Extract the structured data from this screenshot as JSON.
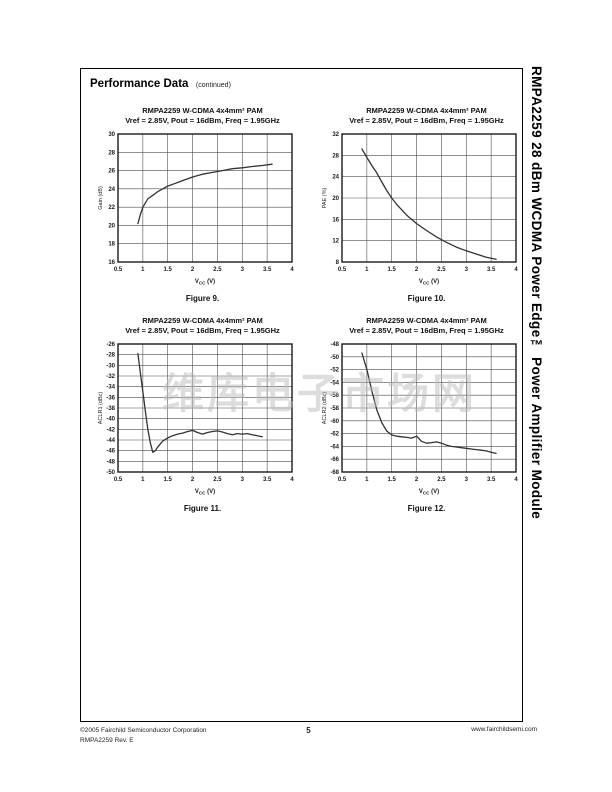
{
  "header": {
    "title": "Performance Data",
    "continued": "(continued)"
  },
  "sidebar": {
    "title": "RMPA2259 28 dBm WCDMA Power Edge™ Power Amplifier Module"
  },
  "watermark": {
    "text": "维库电子市场网"
  },
  "footer": {
    "copyright": "©2005 Fairchild Semiconductor Corporation",
    "revision": "RMPA2259 Rev. E",
    "page_number": "5",
    "website": "www.fairchildsemi.com"
  },
  "style": {
    "curve_color": "#333333",
    "grid_color": "#4d4d4d",
    "frame_color": "#1a1a1a",
    "text_color": "#1a1a1a",
    "watermark_color": "#bdbdbd"
  },
  "chart_data": [
    {
      "id": "figure-9",
      "type": "line",
      "title": "RMPA2259 W-CDMA 4x4mm² PAM",
      "subtitle": "Vref = 2.85V, Pout = 16dBm, Freq = 1.95GHz",
      "caption": "Figure 9.",
      "xlabel": {
        "pre": "V",
        "sub": "CC",
        "post": " (V)"
      },
      "ylabel": "Gain (dB)",
      "xlim": [
        0.5,
        4
      ],
      "ylim": [
        16,
        30
      ],
      "xticks": [
        0.5,
        1,
        1.5,
        2,
        2.5,
        3,
        3.5,
        4
      ],
      "xtick_labels": [
        "0.5",
        "1",
        "1.5",
        "2",
        "2.5",
        "3",
        "3.5",
        "4"
      ],
      "yticks": [
        16,
        18,
        20,
        22,
        24,
        26,
        28,
        30
      ],
      "grid": true,
      "legend": "none",
      "series": [
        {
          "name": "Gain vs Vcc",
          "x": [
            0.9,
            0.95,
            1.0,
            1.1,
            1.2,
            1.3,
            1.4,
            1.5,
            1.6,
            1.8,
            2.0,
            2.2,
            2.4,
            2.6,
            2.8,
            3.0,
            3.2,
            3.4,
            3.6
          ],
          "y": [
            20.2,
            21.2,
            22.0,
            22.9,
            23.3,
            23.7,
            24.0,
            24.3,
            24.5,
            24.9,
            25.3,
            25.6,
            25.8,
            26.0,
            26.2,
            26.3,
            26.45,
            26.55,
            26.7
          ]
        }
      ]
    },
    {
      "id": "figure-10",
      "type": "line",
      "title": "RMPA2259 W-CDMA 4x4mm² PAM",
      "subtitle": "Vref = 2.85V, Pout = 16dBm, Freq = 1.95GHz",
      "caption": "Figure 10.",
      "xlabel": {
        "pre": "V",
        "sub": "CC",
        "post": " (V)"
      },
      "ylabel": "PAE (%)",
      "xlim": [
        0.5,
        4
      ],
      "ylim": [
        8,
        32
      ],
      "xticks": [
        0.5,
        1,
        1.5,
        2,
        2.5,
        3,
        3.5,
        4
      ],
      "xtick_labels": [
        "0.5",
        "1",
        "1.5",
        "2",
        "2.5",
        "3",
        "3.5",
        "4"
      ],
      "yticks": [
        8,
        12,
        16,
        20,
        24,
        28,
        32
      ],
      "grid": true,
      "legend": "none",
      "series": [
        {
          "name": "PAE vs Vcc",
          "x": [
            0.9,
            1.0,
            1.1,
            1.2,
            1.3,
            1.4,
            1.5,
            1.6,
            1.8,
            2.0,
            2.2,
            2.4,
            2.6,
            2.8,
            3.0,
            3.2,
            3.4,
            3.6
          ],
          "y": [
            29.2,
            27.6,
            26.1,
            24.7,
            23.0,
            21.4,
            20.0,
            18.8,
            16.8,
            15.2,
            13.9,
            12.7,
            11.7,
            10.8,
            10.1,
            9.5,
            8.9,
            8.5
          ]
        }
      ]
    },
    {
      "id": "figure-11",
      "type": "line",
      "title": "RMPA2259 W-CDMA 4x4mm² PAM",
      "subtitle": "Vref = 2.85V, Pout = 16dBm, Freq = 1.95GHz",
      "caption": "Figure 11.",
      "xlabel": {
        "pre": "V",
        "sub": "CC",
        "post": " (V)"
      },
      "ylabel": "ACLR1 (dBc)",
      "xlim": [
        0.5,
        4
      ],
      "ylim": [
        -50,
        -26
      ],
      "xticks": [
        0.5,
        1,
        1.5,
        2,
        2.5,
        3,
        3.5,
        4
      ],
      "xtick_labels": [
        "0.5",
        "1",
        "1.5",
        "2",
        "2.5",
        "3",
        "3.5",
        "4"
      ],
      "yticks": [
        -50,
        -48,
        -46,
        -44,
        -42,
        -40,
        -38,
        -36,
        -34,
        -32,
        -30,
        -28,
        -26
      ],
      "grid": true,
      "legend": "none",
      "series": [
        {
          "name": "ACLR1 vs Vcc",
          "x": [
            0.9,
            0.95,
            1.0,
            1.05,
            1.1,
            1.15,
            1.2,
            1.25,
            1.3,
            1.4,
            1.5,
            1.6,
            1.7,
            1.8,
            1.9,
            2.0,
            2.1,
            2.2,
            2.3,
            2.4,
            2.5,
            2.6,
            2.7,
            2.8,
            2.9,
            3.0,
            3.1,
            3.2,
            3.3,
            3.4
          ],
          "y": [
            -27.8,
            -31.5,
            -35.0,
            -38.5,
            -42.0,
            -44.5,
            -46.3,
            -46.0,
            -45.3,
            -44.2,
            -43.6,
            -43.2,
            -42.9,
            -42.7,
            -42.4,
            -42.2,
            -42.6,
            -42.9,
            -42.6,
            -42.4,
            -42.3,
            -42.5,
            -42.8,
            -43.0,
            -42.8,
            -42.9,
            -42.8,
            -43.0,
            -43.2,
            -43.4
          ]
        }
      ]
    },
    {
      "id": "figure-12",
      "type": "line",
      "title": "RMPA2259 W-CDMA 4x4mm² PAM",
      "subtitle": "Vref = 2.85V, Pout = 16dBm, Freq = 1.95GHz",
      "caption": "Figure 12.",
      "xlabel": {
        "pre": "V",
        "sub": "CC",
        "post": " (V)"
      },
      "ylabel": "ACLR2 (dBc)",
      "xlim": [
        0.5,
        4
      ],
      "ylim": [
        -68,
        -48
      ],
      "xticks": [
        0.5,
        1,
        1.5,
        2,
        2.5,
        3,
        3.5,
        4
      ],
      "xtick_labels": [
        "0.5",
        "1",
        "1.5",
        "2",
        "2.5",
        "3",
        "3.5",
        "4"
      ],
      "yticks": [
        -68,
        -66,
        -64,
        -62,
        -60,
        -58,
        -56,
        -54,
        -52,
        -50,
        -48
      ],
      "grid": true,
      "legend": "none",
      "series": [
        {
          "name": "ACLR2 vs Vcc",
          "x": [
            0.9,
            1.0,
            1.1,
            1.2,
            1.3,
            1.4,
            1.5,
            1.6,
            1.7,
            1.8,
            1.9,
            2.0,
            2.1,
            2.2,
            2.3,
            2.4,
            2.5,
            2.6,
            2.7,
            2.8,
            2.9,
            3.0,
            3.1,
            3.2,
            3.3,
            3.4,
            3.5,
            3.6
          ],
          "y": [
            -49.4,
            -52.0,
            -55.3,
            -58.3,
            -60.3,
            -61.6,
            -62.2,
            -62.4,
            -62.5,
            -62.6,
            -62.7,
            -62.4,
            -63.2,
            -63.5,
            -63.4,
            -63.3,
            -63.5,
            -63.8,
            -64.0,
            -64.1,
            -64.2,
            -64.3,
            -64.4,
            -64.5,
            -64.6,
            -64.7,
            -64.9,
            -65.1
          ]
        }
      ]
    }
  ]
}
